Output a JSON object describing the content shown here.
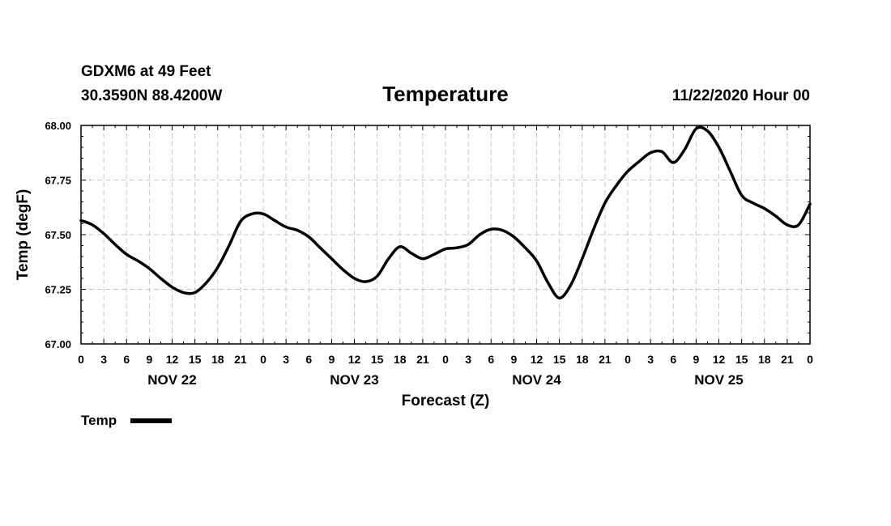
{
  "header": {
    "station": "GDXM6 at 49 Feet",
    "coords": "30.3590N 88.4200W",
    "title": "Temperature",
    "datetime": "11/22/2020 Hour 00"
  },
  "chart_data": {
    "type": "line",
    "title": "Temperature",
    "xlabel": "Forecast (Z)",
    "ylabel": "Temp (degF)",
    "ylim": [
      67.0,
      68.0
    ],
    "xlim": [
      0,
      96
    ],
    "yticks": [
      67.0,
      67.25,
      67.5,
      67.75,
      68.0
    ],
    "ytick_labels": [
      "67.00",
      "67.25",
      "67.50",
      "67.75",
      "68.00"
    ],
    "x_ticks": [
      0,
      3,
      6,
      9,
      12,
      15,
      18,
      21,
      24,
      27,
      30,
      33,
      36,
      39,
      42,
      45,
      48,
      51,
      54,
      57,
      60,
      63,
      66,
      69,
      72,
      75,
      78,
      81,
      84,
      87,
      90,
      93,
      96
    ],
    "x_tick_labels": [
      "0",
      "3",
      "6",
      "9",
      "12",
      "15",
      "18",
      "21",
      "0",
      "3",
      "6",
      "9",
      "12",
      "15",
      "18",
      "21",
      "0",
      "3",
      "6",
      "9",
      "12",
      "15",
      "18",
      "21",
      "0",
      "3",
      "6",
      "9",
      "12",
      "15",
      "18",
      "21",
      "0"
    ],
    "day_labels": [
      {
        "x": 12,
        "label": "NOV 22"
      },
      {
        "x": 36,
        "label": "NOV 23"
      },
      {
        "x": 60,
        "label": "NOV 24"
      },
      {
        "x": 84,
        "label": "NOV 25"
      }
    ],
    "grid": true,
    "legend": {
      "position": "bottom-left",
      "entries": [
        "Temp"
      ]
    },
    "series": [
      {
        "name": "Temp",
        "x": [
          0,
          1.5,
          3,
          4.5,
          6,
          7.5,
          9,
          10.5,
          12,
          13.5,
          15,
          16.5,
          18,
          19.5,
          21,
          22.5,
          24,
          25.5,
          27,
          28.5,
          30,
          31.5,
          33,
          34.5,
          36,
          37.5,
          39,
          40.5,
          42,
          43.5,
          45,
          46.5,
          48,
          49.5,
          51,
          52.5,
          54,
          55.5,
          57,
          58.5,
          60,
          61.5,
          63,
          64.5,
          66,
          67.5,
          69,
          70.5,
          72,
          73.5,
          75,
          76.5,
          78,
          79.5,
          81,
          82.5,
          84,
          85.5,
          87,
          88.5,
          90,
          91.5,
          93,
          94.5,
          96
        ],
        "values": [
          67.565,
          67.545,
          67.505,
          67.455,
          67.41,
          67.38,
          67.345,
          67.3,
          67.26,
          67.235,
          67.235,
          67.28,
          67.35,
          67.45,
          67.56,
          67.595,
          67.595,
          67.565,
          67.535,
          67.52,
          67.49,
          67.44,
          67.39,
          67.34,
          67.3,
          67.285,
          67.31,
          67.39,
          67.445,
          67.415,
          67.39,
          67.41,
          67.435,
          67.44,
          67.455,
          67.5,
          67.525,
          67.52,
          67.49,
          67.44,
          67.38,
          67.28,
          67.21,
          67.27,
          67.39,
          67.525,
          67.645,
          67.725,
          67.79,
          67.835,
          67.875,
          67.88,
          67.83,
          67.89,
          67.985,
          67.975,
          67.9,
          67.79,
          67.68,
          67.645,
          67.62,
          67.585,
          67.545,
          67.545,
          67.64
        ]
      }
    ]
  }
}
